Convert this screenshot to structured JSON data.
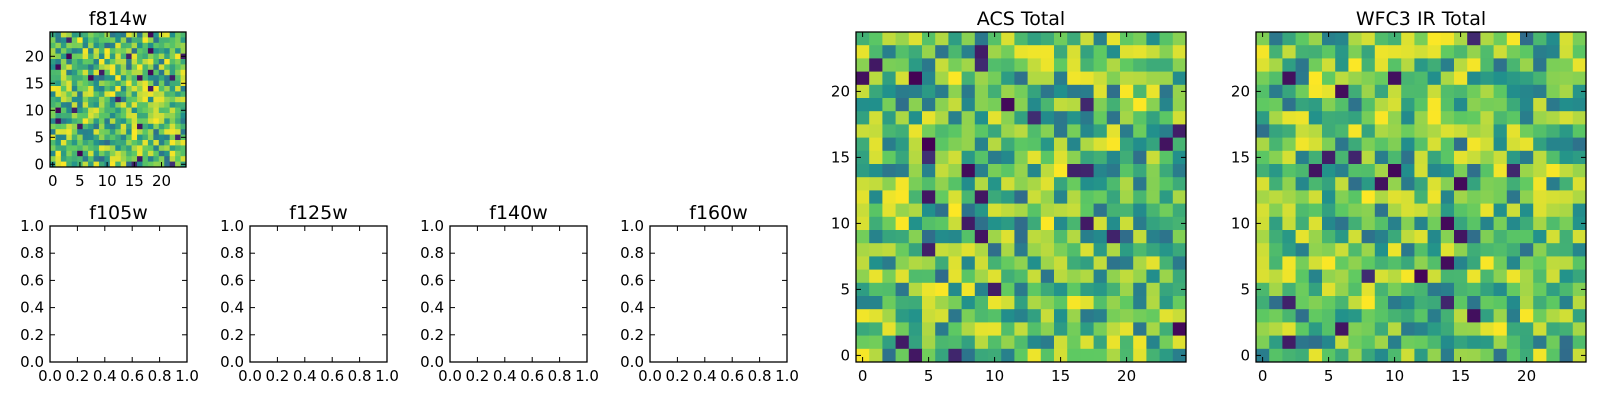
{
  "chart_data": [
    {
      "type": "heatmap",
      "title": "f814w",
      "xlabel": "",
      "ylabel": "",
      "xlim": [
        -0.5,
        24.5
      ],
      "ylim": [
        -0.5,
        24.5
      ],
      "xticks": [
        "0",
        "5",
        "10",
        "15",
        "20"
      ],
      "yticks": [
        "0",
        "5",
        "10",
        "15",
        "20"
      ],
      "grid_shape": [
        25,
        25
      ],
      "colormap": "viridis",
      "seed": 11,
      "empty": false
    },
    {
      "type": "heatmap",
      "title": "f105w",
      "xlim": [
        0.0,
        1.0
      ],
      "ylim": [
        0.0,
        1.0
      ],
      "xticks": [
        "0.0",
        "0.2",
        "0.4",
        "0.6",
        "0.8",
        "1.0"
      ],
      "yticks": [
        "0.0",
        "0.2",
        "0.4",
        "0.6",
        "0.8",
        "1.0"
      ],
      "empty": true
    },
    {
      "type": "heatmap",
      "title": "f125w",
      "xlim": [
        0.0,
        1.0
      ],
      "ylim": [
        0.0,
        1.0
      ],
      "xticks": [
        "0.0",
        "0.2",
        "0.4",
        "0.6",
        "0.8",
        "1.0"
      ],
      "yticks": [
        "0.0",
        "0.2",
        "0.4",
        "0.6",
        "0.8",
        "1.0"
      ],
      "empty": true
    },
    {
      "type": "heatmap",
      "title": "f140w",
      "xlim": [
        0.0,
        1.0
      ],
      "ylim": [
        0.0,
        1.0
      ],
      "xticks": [
        "0.0",
        "0.2",
        "0.4",
        "0.6",
        "0.8",
        "1.0"
      ],
      "yticks": [
        "0.0",
        "0.2",
        "0.4",
        "0.6",
        "0.8",
        "1.0"
      ],
      "empty": true
    },
    {
      "type": "heatmap",
      "title": "f160w",
      "xlim": [
        0.0,
        1.0
      ],
      "ylim": [
        0.0,
        1.0
      ],
      "xticks": [
        "0.0",
        "0.2",
        "0.4",
        "0.6",
        "0.8",
        "1.0"
      ],
      "yticks": [
        "0.0",
        "0.2",
        "0.4",
        "0.6",
        "0.8",
        "1.0"
      ],
      "empty": true
    },
    {
      "type": "heatmap",
      "title": "ACS Total",
      "xlim": [
        -0.5,
        24.5
      ],
      "ylim": [
        -0.5,
        24.5
      ],
      "xticks": [
        "0",
        "5",
        "10",
        "15",
        "20"
      ],
      "yticks": [
        "0",
        "5",
        "10",
        "15",
        "20"
      ],
      "grid_shape": [
        25,
        25
      ],
      "colormap": "viridis",
      "seed": 23,
      "empty": false
    },
    {
      "type": "heatmap",
      "title": "WFC3 IR Total",
      "xlim": [
        -0.5,
        24.5
      ],
      "ylim": [
        -0.5,
        24.5
      ],
      "xticks": [
        "0",
        "5",
        "10",
        "15",
        "20"
      ],
      "yticks": [
        "0",
        "5",
        "10",
        "15",
        "20"
      ],
      "grid_shape": [
        25,
        25
      ],
      "colormap": "viridis",
      "seed": 37,
      "empty": false
    }
  ],
  "colors": {
    "axis": "#000000",
    "background": "#ffffff",
    "viridis_dark": "#440154",
    "viridis_blue": "#3b528b",
    "viridis_teal": "#21918c",
    "viridis_green": "#5ec962",
    "viridis_yellow": "#fde725"
  }
}
